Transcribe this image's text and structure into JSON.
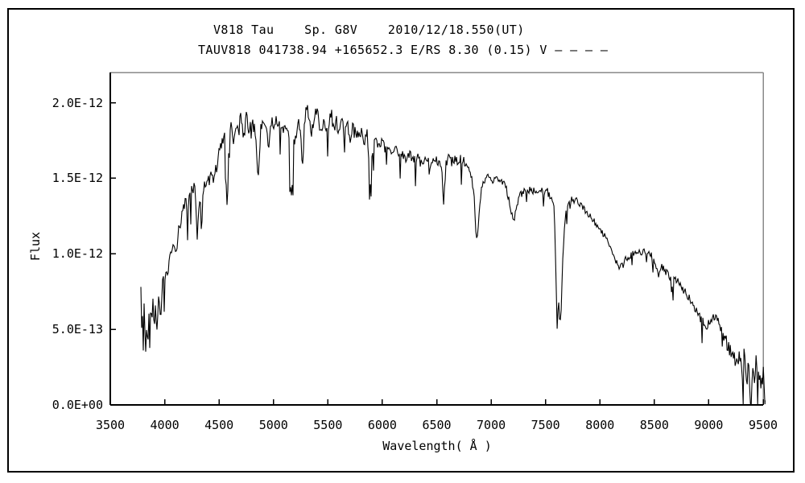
{
  "page": {
    "background": "#ffffff",
    "border_color": "#000000"
  },
  "chart_data": {
    "type": "line",
    "title": "V818 Tau    Sp. G8V    2010/12/18.550(UT)",
    "subtitle": "TAUV818 041738.94 +165652.3 E/RS 8.30 (0.15) V – – – –",
    "xlabel": "Wavelength( Å )",
    "ylabel": "Flux",
    "xlim": [
      3500,
      9500
    ],
    "ylim_1e13": [
      0,
      22
    ],
    "flux_scale": "1e-13",
    "grid": false,
    "legend": "none",
    "line_color": "#000000",
    "axis_color": "#000000",
    "frame_shadow_color": "#8a8a8a",
    "xticks": [
      3500,
      4000,
      4500,
      5000,
      5500,
      6000,
      6500,
      7000,
      7500,
      8000,
      8500,
      9000,
      9500
    ],
    "yticks": [
      {
        "value": 0,
        "label": "0.0E+00"
      },
      {
        "value": 5,
        "label": "5.0E-13"
      },
      {
        "value": 10,
        "label": "1.0E-12"
      },
      {
        "value": 15,
        "label": "1.5E-12"
      },
      {
        "value": 20,
        "label": "2.0E-12"
      }
    ],
    "noise_seed": 42,
    "noise_step_angstrom": 7.4,
    "noise_spike_probability": 0.05,
    "noise_regions": [
      [
        3781,
        4000,
        0.55
      ],
      [
        4000,
        4500,
        0.45
      ],
      [
        4500,
        5950,
        0.5
      ],
      [
        5950,
        6790,
        0.32
      ],
      [
        6790,
        7580,
        0.25
      ],
      [
        7580,
        7700,
        0.35
      ],
      [
        7700,
        8400,
        0.22
      ],
      [
        8400,
        9100,
        0.28
      ],
      [
        9100,
        9300,
        0.45
      ],
      [
        9300,
        9520,
        0.95
      ]
    ],
    "series": [
      {
        "name": "spectrum",
        "points_wavelength_flux1e13": [
          [
            3781,
            7.7
          ],
          [
            3788,
            4.6
          ],
          [
            3795,
            6.6
          ],
          [
            3802,
            3.4
          ],
          [
            3810,
            6.4
          ],
          [
            3818,
            5.2
          ],
          [
            3826,
            3.1
          ],
          [
            3835,
            6.0
          ],
          [
            3843,
            3.4
          ],
          [
            3852,
            6.3
          ],
          [
            3860,
            4.6
          ],
          [
            3870,
            6.6
          ],
          [
            3880,
            5.4
          ],
          [
            3889,
            7.2
          ],
          [
            3900,
            5.2
          ],
          [
            3910,
            6.9
          ],
          [
            3920,
            6.0
          ],
          [
            3933,
            5.0
          ],
          [
            3945,
            7.4
          ],
          [
            3957,
            6.6
          ],
          [
            3968,
            5.6
          ],
          [
            3980,
            7.8
          ],
          [
            3995,
            8.2
          ],
          [
            4010,
            8.4
          ],
          [
            4025,
            8.8
          ],
          [
            4045,
            9.4
          ],
          [
            4065,
            10.1
          ],
          [
            4085,
            10.6
          ],
          [
            4101,
            9.7
          ],
          [
            4120,
            11.2
          ],
          [
            4145,
            12.1
          ],
          [
            4170,
            13.1
          ],
          [
            4195,
            13.4
          ],
          [
            4215,
            12.9
          ],
          [
            4235,
            14.1
          ],
          [
            4260,
            14.5
          ],
          [
            4285,
            13.8
          ],
          [
            4300,
            10.8
          ],
          [
            4312,
            13.0
          ],
          [
            4326,
            13.9
          ],
          [
            4338,
            11.1
          ],
          [
            4352,
            14.3
          ],
          [
            4370,
            14.7
          ],
          [
            4390,
            15.1
          ],
          [
            4410,
            14.6
          ],
          [
            4430,
            15.3
          ],
          [
            4450,
            14.9
          ],
          [
            4470,
            15.6
          ],
          [
            4490,
            16.2
          ],
          [
            4510,
            16.9
          ],
          [
            4530,
            17.3
          ],
          [
            4550,
            17.8
          ],
          [
            4575,
            12.3
          ],
          [
            4590,
            17.9
          ],
          [
            4610,
            18.5
          ],
          [
            4630,
            17.2
          ],
          [
            4655,
            18.7
          ],
          [
            4680,
            18.2
          ],
          [
            4700,
            19.0
          ],
          [
            4725,
            17.6
          ],
          [
            4750,
            19.1
          ],
          [
            4775,
            18.3
          ],
          [
            4800,
            18.8
          ],
          [
            4830,
            18.0
          ],
          [
            4861,
            14.9
          ],
          [
            4885,
            18.3
          ],
          [
            4910,
            18.9
          ],
          [
            4935,
            18.2
          ],
          [
            4957,
            17.0
          ],
          [
            4980,
            18.8
          ],
          [
            5005,
            18.2
          ],
          [
            5030,
            19.1
          ],
          [
            5055,
            18.4
          ],
          [
            5080,
            17.9
          ],
          [
            5110,
            18.6
          ],
          [
            5140,
            17.7
          ],
          [
            5167,
            13.0
          ],
          [
            5185,
            17.2
          ],
          [
            5210,
            18.1
          ],
          [
            5240,
            18.6
          ],
          [
            5269,
            15.8
          ],
          [
            5285,
            18.9
          ],
          [
            5305,
            20.0
          ],
          [
            5330,
            18.8
          ],
          [
            5355,
            18.0
          ],
          [
            5380,
            18.9
          ],
          [
            5405,
            19.7
          ],
          [
            5430,
            18.3
          ],
          [
            5455,
            18.8
          ],
          [
            5480,
            18.1
          ],
          [
            5505,
            18.7
          ],
          [
            5530,
            19.3
          ],
          [
            5555,
            18.4
          ],
          [
            5580,
            18.8
          ],
          [
            5605,
            18.1
          ],
          [
            5630,
            18.5
          ],
          [
            5655,
            17.9
          ],
          [
            5680,
            18.4
          ],
          [
            5705,
            17.8
          ],
          [
            5735,
            18.3
          ],
          [
            5765,
            17.7
          ],
          [
            5800,
            18.2
          ],
          [
            5835,
            17.5
          ],
          [
            5865,
            17.9
          ],
          [
            5893,
            14.7
          ],
          [
            5915,
            17.3
          ],
          [
            5940,
            17.6
          ],
          [
            5970,
            17.0
          ],
          [
            6000,
            17.4
          ],
          [
            6030,
            16.8
          ],
          [
            6060,
            17.2
          ],
          [
            6090,
            16.6
          ],
          [
            6120,
            17.0
          ],
          [
            6150,
            16.4
          ],
          [
            6180,
            16.8
          ],
          [
            6215,
            16.2
          ],
          [
            6250,
            16.6
          ],
          [
            6285,
            16.1
          ],
          [
            6320,
            16.4
          ],
          [
            6360,
            15.9
          ],
          [
            6400,
            16.2
          ],
          [
            6440,
            15.9
          ],
          [
            6480,
            16.3
          ],
          [
            6520,
            16.1
          ],
          [
            6545,
            15.9
          ],
          [
            6563,
            13.5
          ],
          [
            6585,
            16.0
          ],
          [
            6610,
            16.3
          ],
          [
            6640,
            16.1
          ],
          [
            6670,
            16.4
          ],
          [
            6700,
            16.1
          ],
          [
            6730,
            16.3
          ],
          [
            6760,
            16.0
          ],
          [
            6790,
            15.6
          ],
          [
            6820,
            15.0
          ],
          [
            6845,
            13.8
          ],
          [
            6862,
            10.9
          ],
          [
            6878,
            11.2
          ],
          [
            6895,
            13.2
          ],
          [
            6915,
            14.4
          ],
          [
            6940,
            14.8
          ],
          [
            6965,
            15.0
          ],
          [
            6990,
            15.2
          ],
          [
            7015,
            14.9
          ],
          [
            7040,
            15.1
          ],
          [
            7065,
            14.8
          ],
          [
            7090,
            14.9
          ],
          [
            7115,
            14.6
          ],
          [
            7140,
            14.3
          ],
          [
            7165,
            13.6
          ],
          [
            7186,
            12.6
          ],
          [
            7210,
            12.3
          ],
          [
            7235,
            13.1
          ],
          [
            7260,
            13.8
          ],
          [
            7285,
            14.0
          ],
          [
            7310,
            14.2
          ],
          [
            7335,
            14.0
          ],
          [
            7360,
            14.3
          ],
          [
            7385,
            14.1
          ],
          [
            7410,
            14.2
          ],
          [
            7435,
            14.0
          ],
          [
            7460,
            14.2
          ],
          [
            7485,
            14.1
          ],
          [
            7510,
            14.2
          ],
          [
            7535,
            13.9
          ],
          [
            7560,
            13.7
          ],
          [
            7580,
            12.8
          ],
          [
            7596,
            8.5
          ],
          [
            7608,
            5.0
          ],
          [
            7618,
            6.9
          ],
          [
            7630,
            5.4
          ],
          [
            7642,
            6.2
          ],
          [
            7655,
            8.8
          ],
          [
            7670,
            11.0
          ],
          [
            7685,
            12.4
          ],
          [
            7700,
            13.2
          ],
          [
            7715,
            13.6
          ],
          [
            7730,
            13.5
          ],
          [
            7745,
            13.6
          ],
          [
            7760,
            13.4
          ],
          [
            7780,
            13.6
          ],
          [
            7800,
            13.4
          ],
          [
            7825,
            13.2
          ],
          [
            7850,
            13.0
          ],
          [
            7875,
            12.8
          ],
          [
            7900,
            12.6
          ],
          [
            7925,
            12.3
          ],
          [
            7950,
            12.1
          ],
          [
            7975,
            11.9
          ],
          [
            8000,
            11.7
          ],
          [
            8025,
            11.4
          ],
          [
            8050,
            11.1
          ],
          [
            8075,
            10.7
          ],
          [
            8100,
            10.4
          ],
          [
            8125,
            10.0
          ],
          [
            8150,
            9.5
          ],
          [
            8175,
            9.1
          ],
          [
            8195,
            9.4
          ],
          [
            8215,
            9.1
          ],
          [
            8240,
            9.8
          ],
          [
            8265,
            9.6
          ],
          [
            8290,
            9.9
          ],
          [
            8315,
            10.1
          ],
          [
            8340,
            9.9
          ],
          [
            8365,
            10.2
          ],
          [
            8390,
            10.0
          ],
          [
            8415,
            10.3
          ],
          [
            8440,
            10.1
          ],
          [
            8465,
            9.9
          ],
          [
            8490,
            9.6
          ],
          [
            8515,
            9.3
          ],
          [
            8542,
            8.6
          ],
          [
            8565,
            9.2
          ],
          [
            8590,
            8.9
          ],
          [
            8615,
            8.7
          ],
          [
            8640,
            8.4
          ],
          [
            8662,
            8.0
          ],
          [
            8685,
            8.4
          ],
          [
            8710,
            8.2
          ],
          [
            8735,
            7.9
          ],
          [
            8760,
            7.7
          ],
          [
            8785,
            7.4
          ],
          [
            8810,
            7.1
          ],
          [
            8835,
            6.9
          ],
          [
            8860,
            6.6
          ],
          [
            8885,
            6.3
          ],
          [
            8910,
            5.9
          ],
          [
            8935,
            5.6
          ],
          [
            8960,
            5.4
          ],
          [
            8985,
            5.2
          ],
          [
            9010,
            5.5
          ],
          [
            9035,
            5.8
          ],
          [
            9060,
            5.9
          ],
          [
            9085,
            5.6
          ],
          [
            9110,
            5.2
          ],
          [
            9135,
            4.7
          ],
          [
            9160,
            4.2
          ],
          [
            9185,
            3.8
          ],
          [
            9210,
            3.5
          ],
          [
            9235,
            3.1
          ],
          [
            9260,
            2.8
          ],
          [
            9285,
            3.2
          ],
          [
            9305,
            2.2
          ],
          [
            9325,
            3.6
          ],
          [
            9345,
            1.3
          ],
          [
            9365,
            3.3
          ],
          [
            9385,
            0.7
          ],
          [
            9405,
            2.9
          ],
          [
            9420,
            1.1
          ],
          [
            9435,
            3.4
          ],
          [
            9450,
            0.8
          ],
          [
            9465,
            2.6
          ],
          [
            9480,
            0.4
          ],
          [
            9495,
            2.2
          ],
          [
            9508,
            0.9
          ],
          [
            9518,
            0.3
          ]
        ]
      }
    ]
  }
}
